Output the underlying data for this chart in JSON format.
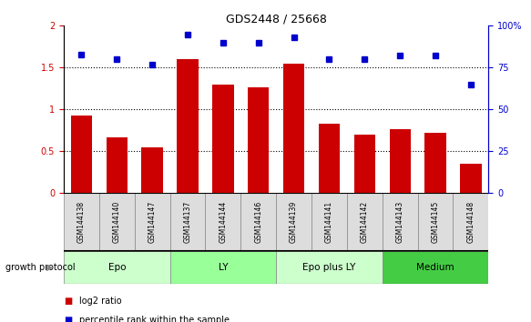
{
  "title": "GDS2448 / 25668",
  "samples": [
    "GSM144138",
    "GSM144140",
    "GSM144147",
    "GSM144137",
    "GSM144144",
    "GSM144146",
    "GSM144139",
    "GSM144141",
    "GSM144142",
    "GSM144143",
    "GSM144145",
    "GSM144148"
  ],
  "log2_ratio": [
    0.93,
    0.67,
    0.55,
    1.6,
    1.3,
    1.27,
    1.55,
    0.83,
    0.7,
    0.77,
    0.72,
    0.35
  ],
  "percentile_rank": [
    83,
    80,
    77,
    95,
    90,
    90,
    93,
    80,
    80,
    82,
    82,
    65
  ],
  "bar_color": "#cc0000",
  "dot_color": "#0000cc",
  "ylim_left": [
    0,
    2
  ],
  "ylim_right": [
    0,
    100
  ],
  "yticks_left": [
    0,
    0.5,
    1.0,
    1.5,
    2.0
  ],
  "yticks_right": [
    0,
    25,
    50,
    75,
    100
  ],
  "ytick_labels_left": [
    "0",
    "0.5",
    "1",
    "1.5",
    "2"
  ],
  "ytick_labels_right": [
    "0",
    "25",
    "50",
    "75",
    "100%"
  ],
  "hlines": [
    0.5,
    1.0,
    1.5
  ],
  "groups": [
    {
      "label": "Epo",
      "start": 0,
      "end": 3,
      "color": "#ccffcc"
    },
    {
      "label": "LY",
      "start": 3,
      "end": 6,
      "color": "#99ff99"
    },
    {
      "label": "Epo plus LY",
      "start": 6,
      "end": 9,
      "color": "#ccffcc"
    },
    {
      "label": "Medium",
      "start": 9,
      "end": 12,
      "color": "#44cc44"
    }
  ],
  "sample_box_color": "#dddddd",
  "growth_protocol_label": "growth protocol",
  "legend_items": [
    {
      "color": "#cc0000",
      "label": "log2 ratio"
    },
    {
      "color": "#0000cc",
      "label": "percentile rank within the sample"
    }
  ]
}
